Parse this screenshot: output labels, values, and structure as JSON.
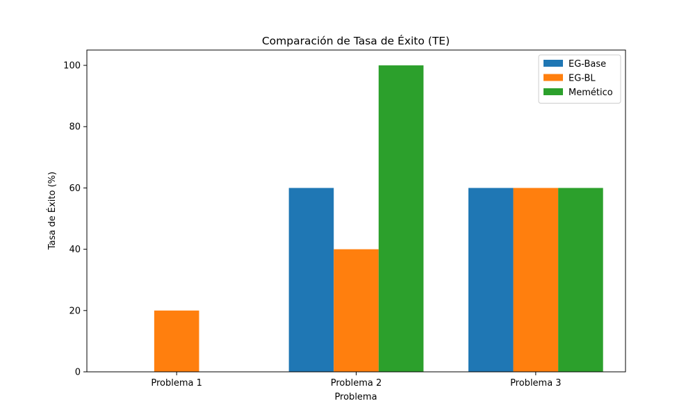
{
  "chart_data": {
    "type": "bar",
    "title": "Comparación de Tasa de Éxito (TE)",
    "xlabel": "Problema",
    "ylabel": "Tasa de Éxito (%)",
    "categories": [
      "Problema 1",
      "Problema 2",
      "Problema 3"
    ],
    "series": [
      {
        "name": "EG-Base",
        "values": [
          0,
          60,
          60
        ],
        "color": "#1f77b4"
      },
      {
        "name": "EG-BL",
        "values": [
          20,
          40,
          60
        ],
        "color": "#ff7f0e"
      },
      {
        "name": "Memético",
        "values": [
          0,
          100,
          60
        ],
        "color": "#2ca02c"
      }
    ],
    "ylim": [
      0,
      105
    ],
    "yticks": [
      0,
      20,
      40,
      60,
      80,
      100
    ],
    "grid": false,
    "legend_position": "top-right"
  }
}
